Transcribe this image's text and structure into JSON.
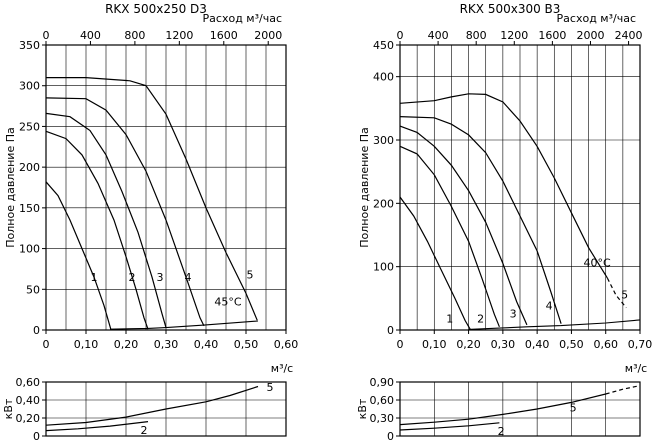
{
  "chart_data": [
    {
      "type": "line",
      "title": "RKX 500x250 D3",
      "top_axis_label": "Расход м³/час",
      "top_ticks": [
        "0",
        "400",
        "800",
        "1200",
        "1600",
        "2000"
      ],
      "top_ticks_values": [
        0,
        400,
        800,
        1200,
        1600,
        2000
      ],
      "top_range": [
        0,
        2160
      ],
      "xlabel": "м³/с",
      "ylabel": "Полное давление Па",
      "xlim": [
        0,
        0.6
      ],
      "ylim": [
        0,
        350
      ],
      "x_ticks": [
        "0",
        "0,10",
        "0,20",
        "0,30",
        "0,40",
        "0,50",
        "0,60"
      ],
      "x_ticks_values": [
        0,
        0.1,
        0.2,
        0.3,
        0.4,
        0.5,
        0.6
      ],
      "y_ticks": [
        "0",
        "50",
        "100",
        "150",
        "200",
        "250",
        "300",
        "350"
      ],
      "y_ticks_values": [
        0,
        50,
        100,
        150,
        200,
        250,
        300,
        350
      ],
      "grid": true,
      "series": [
        {
          "name": "1",
          "label_at": [
            0.12,
            60
          ],
          "points": [
            [
              0,
              182
            ],
            [
              0.03,
              165
            ],
            [
              0.06,
              135
            ],
            [
              0.09,
              100
            ],
            [
              0.12,
              65
            ],
            [
              0.145,
              30
            ],
            [
              0.162,
              1
            ]
          ]
        },
        {
          "name": "2",
          "label_at": [
            0.215,
            60
          ],
          "points": [
            [
              0,
              244
            ],
            [
              0.05,
              235
            ],
            [
              0.09,
              215
            ],
            [
              0.13,
              180
            ],
            [
              0.17,
              135
            ],
            [
              0.2,
              90
            ],
            [
              0.225,
              50
            ],
            [
              0.245,
              15
            ],
            [
              0.255,
              1
            ]
          ]
        },
        {
          "name": "3",
          "label_at": [
            0.285,
            60
          ],
          "points": [
            [
              0,
              266
            ],
            [
              0.06,
              262
            ],
            [
              0.11,
              245
            ],
            [
              0.15,
              215
            ],
            [
              0.19,
              170
            ],
            [
              0.23,
              120
            ],
            [
              0.265,
              65
            ],
            [
              0.29,
              20
            ],
            [
              0.3,
              3
            ]
          ]
        },
        {
          "name": "4",
          "label_at": [
            0.355,
            60
          ],
          "points": [
            [
              0,
              285
            ],
            [
              0.1,
              284
            ],
            [
              0.15,
              270
            ],
            [
              0.2,
              240
            ],
            [
              0.25,
              195
            ],
            [
              0.3,
              135
            ],
            [
              0.35,
              65
            ],
            [
              0.385,
              15
            ],
            [
              0.395,
              5
            ]
          ]
        },
        {
          "name": "5",
          "label_at": [
            0.51,
            63
          ],
          "points": [
            [
              0,
              310
            ],
            [
              0.1,
              310
            ],
            [
              0.21,
              306
            ],
            [
              0.25,
              300
            ],
            [
              0.3,
              265
            ],
            [
              0.35,
              210
            ],
            [
              0.4,
              150
            ],
            [
              0.45,
              95
            ],
            [
              0.5,
              45
            ],
            [
              0.528,
              12
            ]
          ]
        }
      ],
      "system_line": {
        "points": [
          [
            0.16,
            1
          ],
          [
            0.255,
            2
          ],
          [
            0.3,
            3
          ],
          [
            0.395,
            6
          ],
          [
            0.53,
            11
          ]
        ]
      },
      "annotation": {
        "text": "45°C",
        "at": [
          0.455,
          30
        ]
      }
    },
    {
      "type": "line",
      "title": "RKX 500x300 B3",
      "top_axis_label": "Расход м³/час",
      "top_ticks": [
        "0",
        "400",
        "800",
        "1200",
        "1600",
        "2000",
        "2400"
      ],
      "top_ticks_values": [
        0,
        400,
        800,
        1200,
        1600,
        2000,
        2400
      ],
      "top_range": [
        0,
        2520
      ],
      "xlabel": "м³/с",
      "ylabel": "Полное давление Па",
      "xlim": [
        0,
        0.7
      ],
      "ylim": [
        0,
        450
      ],
      "x_ticks": [
        "0",
        "0,10",
        "0,20",
        "0,30",
        "0,40",
        "0,50",
        "0,60",
        "0,70"
      ],
      "x_ticks_values": [
        0,
        0.1,
        0.2,
        0.3,
        0.4,
        0.5,
        0.6,
        0.7
      ],
      "y_ticks": [
        "0",
        "100",
        "200",
        "300",
        "400",
        "450"
      ],
      "y_ticks_values": [
        0,
        100,
        200,
        300,
        400,
        450
      ],
      "grid": true,
      "series": [
        {
          "name": "1",
          "label_at": [
            0.145,
            12
          ],
          "points": [
            [
              0,
              210
            ],
            [
              0.04,
              180
            ],
            [
              0.08,
              140
            ],
            [
              0.12,
              95
            ],
            [
              0.16,
              50
            ],
            [
              0.19,
              15
            ],
            [
              0.205,
              1
            ]
          ]
        },
        {
          "name": "2",
          "label_at": [
            0.235,
            12
          ],
          "points": [
            [
              0,
              290
            ],
            [
              0.05,
              278
            ],
            [
              0.1,
              245
            ],
            [
              0.15,
              195
            ],
            [
              0.2,
              140
            ],
            [
              0.24,
              80
            ],
            [
              0.275,
              25
            ],
            [
              0.29,
              5
            ]
          ]
        },
        {
          "name": "3",
          "label_at": [
            0.33,
            20
          ],
          "points": [
            [
              0,
              322
            ],
            [
              0.05,
              312
            ],
            [
              0.1,
              290
            ],
            [
              0.15,
              260
            ],
            [
              0.2,
              220
            ],
            [
              0.25,
              170
            ],
            [
              0.3,
              105
            ],
            [
              0.34,
              45
            ],
            [
              0.37,
              8
            ]
          ]
        },
        {
          "name": "4",
          "label_at": [
            0.435,
            32
          ],
          "points": [
            [
              0,
              337
            ],
            [
              0.1,
              335
            ],
            [
              0.15,
              325
            ],
            [
              0.2,
              308
            ],
            [
              0.25,
              280
            ],
            [
              0.3,
              235
            ],
            [
              0.35,
              180
            ],
            [
              0.4,
              125
            ],
            [
              0.44,
              60
            ],
            [
              0.47,
              10
            ]
          ]
        },
        {
          "name": "5",
          "label_at": [
            0.655,
            50
          ],
          "points": [
            [
              0,
              358
            ],
            [
              0.1,
              362
            ],
            [
              0.15,
              368
            ],
            [
              0.2,
              373
            ],
            [
              0.25,
              372
            ],
            [
              0.3,
              360
            ],
            [
              0.35,
              330
            ],
            [
              0.4,
              290
            ],
            [
              0.45,
              240
            ],
            [
              0.5,
              185
            ],
            [
              0.55,
              130
            ],
            [
              0.605,
              82
            ]
          ],
          "dashed_points": [
            [
              0.605,
              82
            ],
            [
              0.63,
              55
            ],
            [
              0.66,
              35
            ]
          ]
        }
      ],
      "system_line": {
        "points": [
          [
            0.2,
            1
          ],
          [
            0.29,
            3
          ],
          [
            0.37,
            5
          ],
          [
            0.47,
            7
          ],
          [
            0.6,
            11
          ],
          [
            0.7,
            16
          ]
        ]
      },
      "annotation": {
        "text": "40°C",
        "at": [
          0.575,
          100
        ]
      }
    },
    {
      "type": "line",
      "ylabel": "кВт",
      "xlim": [
        0,
        0.6
      ],
      "ylim": [
        0,
        0.6
      ],
      "y_ticks": [
        "0",
        "0,20",
        "0,40",
        "0,60"
      ],
      "y_ticks_values": [
        0,
        0.2,
        0.4,
        0.6
      ],
      "grid": true,
      "series": [
        {
          "name": "2",
          "label_at": [
            0.245,
            0.02
          ],
          "points": [
            [
              0,
              0.06
            ],
            [
              0.08,
              0.08
            ],
            [
              0.16,
              0.11
            ],
            [
              0.255,
              0.16
            ]
          ]
        },
        {
          "name": "5",
          "label_at": [
            0.56,
            0.5
          ],
          "points": [
            [
              0,
              0.12
            ],
            [
              0.1,
              0.15
            ],
            [
              0.2,
              0.21
            ],
            [
              0.3,
              0.3
            ],
            [
              0.4,
              0.38
            ],
            [
              0.46,
              0.45
            ],
            [
              0.53,
              0.55
            ]
          ]
        }
      ]
    },
    {
      "type": "line",
      "ylabel": "кВт",
      "xlim": [
        0,
        0.7
      ],
      "ylim": [
        0,
        0.9
      ],
      "y_ticks": [
        "0",
        "0,30",
        "0,60",
        "0,90"
      ],
      "y_ticks_values": [
        0,
        0.3,
        0.6,
        0.9
      ],
      "grid": true,
      "series": [
        {
          "name": "2",
          "label_at": [
            0.295,
            0.02
          ],
          "points": [
            [
              0,
              0.1
            ],
            [
              0.1,
              0.13
            ],
            [
              0.2,
              0.17
            ],
            [
              0.29,
              0.22
            ]
          ]
        },
        {
          "name": "5",
          "label_at": [
            0.505,
            0.41
          ],
          "points": [
            [
              0,
              0.19
            ],
            [
              0.1,
              0.23
            ],
            [
              0.2,
              0.28
            ],
            [
              0.3,
              0.36
            ],
            [
              0.4,
              0.45
            ],
            [
              0.5,
              0.56
            ],
            [
              0.6,
              0.7
            ]
          ],
          "dashed_points": [
            [
              0.6,
              0.7
            ],
            [
              0.65,
              0.78
            ],
            [
              0.7,
              0.84
            ]
          ]
        }
      ]
    }
  ]
}
